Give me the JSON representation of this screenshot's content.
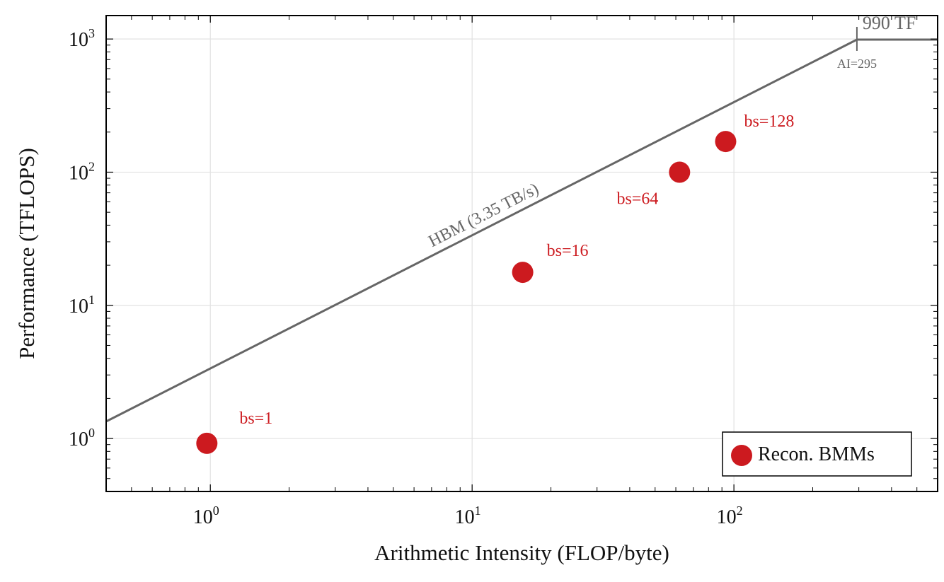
{
  "chart_data": {
    "type": "scatter",
    "title": "",
    "xlabel": "Arithmetic Intensity (FLOP/byte)",
    "ylabel": "Performance (TFLOPS)",
    "xscale": "log",
    "yscale": "log",
    "xlim": [
      0.4,
      600
    ],
    "ylim": [
      0.4,
      1500
    ],
    "x_ticks": [
      {
        "base": "10",
        "exp": "0",
        "value": 1
      },
      {
        "base": "10",
        "exp": "1",
        "value": 10
      },
      {
        "base": "10",
        "exp": "2",
        "value": 100
      }
    ],
    "y_ticks": [
      {
        "base": "10",
        "exp": "0",
        "value": 1
      },
      {
        "base": "10",
        "exp": "1",
        "value": 10
      },
      {
        "base": "10",
        "exp": "2",
        "value": 100
      },
      {
        "base": "10",
        "exp": "3",
        "value": 1000
      }
    ],
    "grid": true,
    "roofline": {
      "bandwidth_tb_s": 3.35,
      "peak_tflops": 990,
      "ridge_ai": 295,
      "bandwidth_label": "HBM (3.35 TB/s)",
      "peak_label": "990 TF",
      "ridge_label": "AI=295",
      "color": "#666666"
    },
    "series": [
      {
        "name": "Recon. BMMs",
        "color": "#cc1a1f",
        "points": [
          {
            "x": 0.97,
            "y": 0.92,
            "label": "bs=1"
          },
          {
            "x": 15.6,
            "y": 17.7,
            "label": "bs=16"
          },
          {
            "x": 62.0,
            "y": 100,
            "label": "bs=64"
          },
          {
            "x": 93.0,
            "y": 170,
            "label": "bs=128"
          }
        ]
      }
    ],
    "legend": {
      "position": "bottom-right",
      "entries": [
        "Recon. BMMs"
      ]
    }
  }
}
